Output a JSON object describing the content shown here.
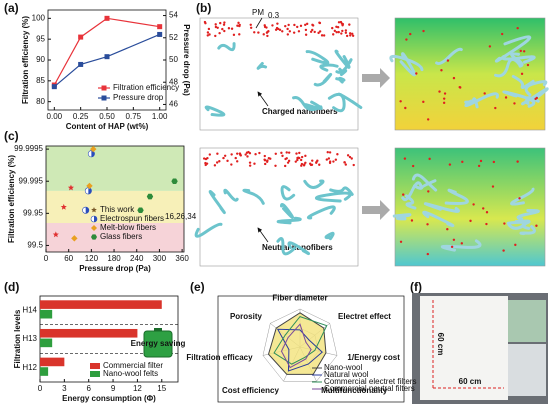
{
  "panel_labels": [
    "(a)",
    "(b)",
    "(c)",
    "(d)",
    "(e)",
    "(f)"
  ],
  "simulation": {
    "pm_label": "PM",
    "pm_sub": "0.3",
    "charged": "Charged nanofibers",
    "neutral": "Neutral nanofibers"
  },
  "photo": {
    "vertical": "60 cm",
    "horizontal": "60 cm"
  },
  "chart_data": [
    {
      "type": "line",
      "x_label": "Content of HAP (wt%)",
      "y_label": "Filtration efficiency (%)",
      "y2_label": "Pressure drop (Pa)",
      "x": [
        0,
        0.25,
        0.5,
        1
      ],
      "xlim": [
        -0.06,
        1.06
      ],
      "xticks": [
        {
          "value": 0,
          "label": "0.00"
        },
        {
          "value": 0.25,
          "label": "0.25"
        },
        {
          "value": 0.5,
          "label": "0.50"
        },
        {
          "value": 0.75,
          "label": "0.75"
        },
        {
          "value": 1,
          "label": "1.00"
        }
      ],
      "ylim": [
        78,
        102
      ],
      "yticks": [
        80,
        85,
        90,
        95,
        100
      ],
      "y2lim": [
        45.5,
        54.5
      ],
      "y2ticks": [
        46,
        48,
        50,
        52,
        54
      ],
      "series": [
        {
          "name": "Filtration efficiency",
          "color": "#e8333a",
          "values": [
            84,
            95.5,
            100,
            98
          ]
        },
        {
          "name": "Pressure drop",
          "color": "#2a4d9b",
          "axis": "y2",
          "values": [
            47.6,
            49.6,
            50.3,
            52.3
          ]
        }
      ]
    },
    {
      "type": "scatter",
      "x_label": "Pressure drop (Pa)",
      "y_label": "Filtration efficiency (%)",
      "yscale": "log-penetration",
      "xlim": [
        0,
        365
      ],
      "xticks": [
        0,
        60,
        120,
        180,
        240,
        300,
        360
      ],
      "ylim": [
        99.2,
        99.9996
      ],
      "yticks": [
        99.5,
        99.95,
        99.995,
        99.9995
      ],
      "bands": [
        {
          "ylim": [
            99.2,
            99.9
          ],
          "color": "#f6d3d8"
        },
        {
          "ylim": [
            99.9,
            99.99
          ],
          "color": "#f7f0b8"
        },
        {
          "ylim": [
            99.99,
            99.9996
          ],
          "color": "#cfe9b6"
        }
      ],
      "series": [
        {
          "name": "This work",
          "marker": "star",
          "color": "#e03030",
          "legend_color": "#7a5a2a",
          "x": [
            26,
            47,
            66
          ],
          "values": [
            99.77,
            99.968,
            99.992
          ]
        },
        {
          "name": "Electrospun fibers",
          "name_ref": "16,26,34",
          "marker": "half",
          "color": "#2a4dbb",
          "x": [
            105,
            112,
            120
          ],
          "values": [
            99.96,
            99.99,
            99.9993
          ]
        },
        {
          "name": "Melt-blow fibers",
          "marker": "diamond",
          "color": "#e9a020",
          "x": [
            75,
            115,
            125
          ],
          "values": [
            99.7,
            99.993,
            99.9995
          ]
        },
        {
          "name": "Glass fibers",
          "marker": "hexagon",
          "color": "#2e8b3a",
          "x": [
            250,
            275,
            340
          ],
          "values": [
            99.96,
            99.985,
            99.995
          ]
        }
      ]
    },
    {
      "type": "hbar",
      "x_label": "Energy consumption (Φ)",
      "y_label": "Filtration levels",
      "annotation": "Energy saving",
      "categories": [
        "H12",
        "H13",
        "H14"
      ],
      "xlim": [
        0,
        17
      ],
      "xticks": [
        0,
        3,
        6,
        9,
        12,
        15
      ],
      "series": [
        {
          "name": "Commercial filter",
          "color": "#d9342b",
          "values": [
            3,
            12,
            15
          ]
        },
        {
          "name": "Nano-wool felts",
          "color": "#2e9e3e",
          "values": [
            1,
            1.5,
            1.5
          ]
        }
      ]
    },
    {
      "type": "radar",
      "axes": [
        "Fiber diameter",
        "Electret effect",
        "1/Energy cost",
        "Multifunctionality",
        "Cost efficiency",
        "Filtration efficacy",
        "Porosity"
      ],
      "rlim": [
        0,
        1
      ],
      "series": [
        {
          "name": "Nano-wool",
          "color": "#444",
          "fill": "#f3e27a",
          "values": [
            0.9,
            0.8,
            0.7,
            0.8,
            0.8,
            0.85,
            0.8
          ]
        },
        {
          "name": "Natural wool",
          "color": "#2a3b9b",
          "values": [
            0.45,
            0.3,
            0.6,
            0.5,
            0.7,
            0.3,
            0.75
          ]
        },
        {
          "name": "Commercial electret filters",
          "color": "#2f8f5a",
          "values": [
            0.8,
            0.9,
            0.4,
            0.3,
            0.5,
            0.7,
            0.5
          ]
        },
        {
          "name": "Commercial neutral filters",
          "color": "#7a4a9b",
          "values": [
            0.6,
            0.2,
            0.3,
            0.35,
            0.6,
            0.5,
            0.4
          ]
        }
      ]
    }
  ]
}
